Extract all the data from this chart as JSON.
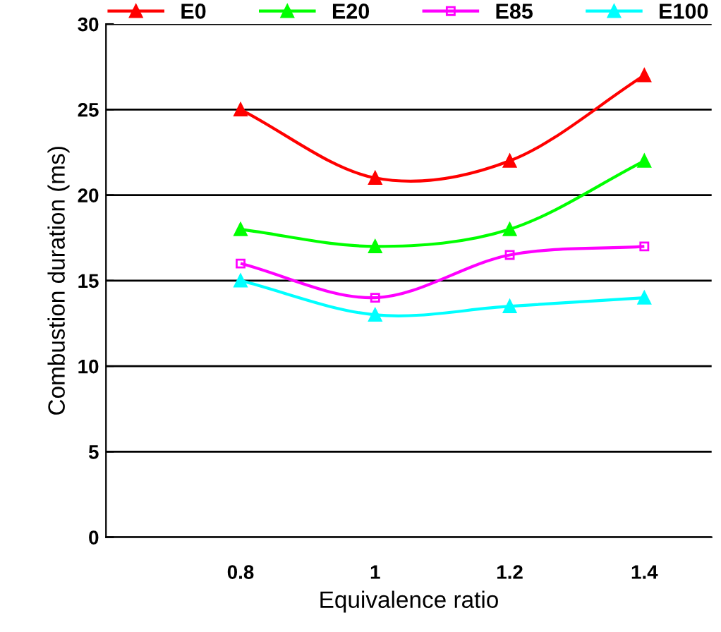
{
  "chart_data": {
    "type": "line",
    "xlabel": "Equivalence ratio",
    "ylabel": "Combustion duration (ms)",
    "x": [
      0.8,
      1,
      1.2,
      1.4
    ],
    "series": [
      {
        "name": "E0",
        "color": "#ff0000",
        "values": [
          25,
          21,
          22,
          27
        ],
        "marker": "triangle"
      },
      {
        "name": "E20",
        "color": "#00ff00",
        "values": [
          18,
          17,
          18,
          22
        ],
        "marker": "triangle"
      },
      {
        "name": "E85",
        "color": "#ff00ff",
        "values": [
          16,
          14,
          16.5,
          17
        ],
        "marker": "square"
      },
      {
        "name": "E100",
        "color": "#00ffff",
        "values": [
          15,
          13,
          13.5,
          14
        ],
        "marker": "triangle"
      }
    ],
    "xlim": [
      0.6,
      1.5
    ],
    "xticks": [
      0.8,
      1,
      1.2,
      1.4
    ],
    "ylim": [
      0,
      30
    ],
    "yticks": [
      0,
      5,
      10,
      15,
      20,
      25,
      30
    ],
    "grid": "y",
    "legend": "top",
    "line_style": "solid"
  }
}
